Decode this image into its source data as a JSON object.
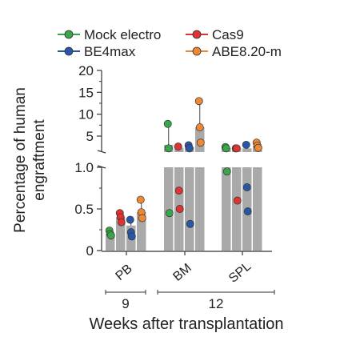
{
  "chart_data": {
    "type": "bar",
    "ylabel": "Percentage of human engraftment",
    "ylabel_lines": [
      "Percentage of human",
      "engraftment"
    ],
    "xlabel": "Weeks after transplantation",
    "categories": [
      "PB",
      "BM",
      "SPL"
    ],
    "week_groups": [
      {
        "label": "9",
        "categories": [
          "PB"
        ]
      },
      {
        "label": "12",
        "categories": [
          "BM",
          "SPL"
        ]
      }
    ],
    "y_axis_broken": true,
    "ylim_lower": [
      0,
      1.0
    ],
    "ylim_upper": [
      1.0,
      20
    ],
    "yticks_lower": [
      "0",
      "0.5",
      "1.0"
    ],
    "yticks_upper": [
      "5",
      "10",
      "15",
      "20"
    ],
    "legend_position": "top",
    "series": [
      {
        "name": "Mock electro",
        "color": "#3aa64a",
        "mean": [
          0.2,
          3.0,
          2.2
        ],
        "points": [
          [
            0.24,
            0.2,
            0.18
          ],
          [
            7.8,
            2.2,
            0.45
          ],
          [
            2.5,
            2.2,
            0.95
          ]
        ]
      },
      {
        "name": "Cas9",
        "color": "#dd3333",
        "mean": [
          0.4,
          2.3,
          1.4
        ],
        "points": [
          [
            0.45,
            0.4,
            0.34
          ],
          [
            2.6,
            0.72,
            0.5
          ],
          [
            2.0,
            1.8,
            0.6
          ]
        ]
      },
      {
        "name": "BE4max",
        "color": "#2a57a5",
        "mean": [
          0.3,
          2.5,
          2.0
        ],
        "points": [
          [
            0.37,
            0.22,
            0.17
          ],
          [
            2.9,
            2.2,
            0.32
          ],
          [
            3.0,
            0.76,
            0.47
          ]
        ]
      },
      {
        "name": "ABE8.20-m",
        "color": "#ee8833",
        "mean": [
          0.46,
          7.0,
          2.8
        ],
        "points": [
          [
            0.61,
            0.46,
            0.39
          ],
          [
            13.0,
            7.0,
            3.5
          ],
          [
            3.5,
            2.8,
            2.3
          ]
        ]
      }
    ],
    "bar_color": "#a9a9a9",
    "grid": false
  }
}
